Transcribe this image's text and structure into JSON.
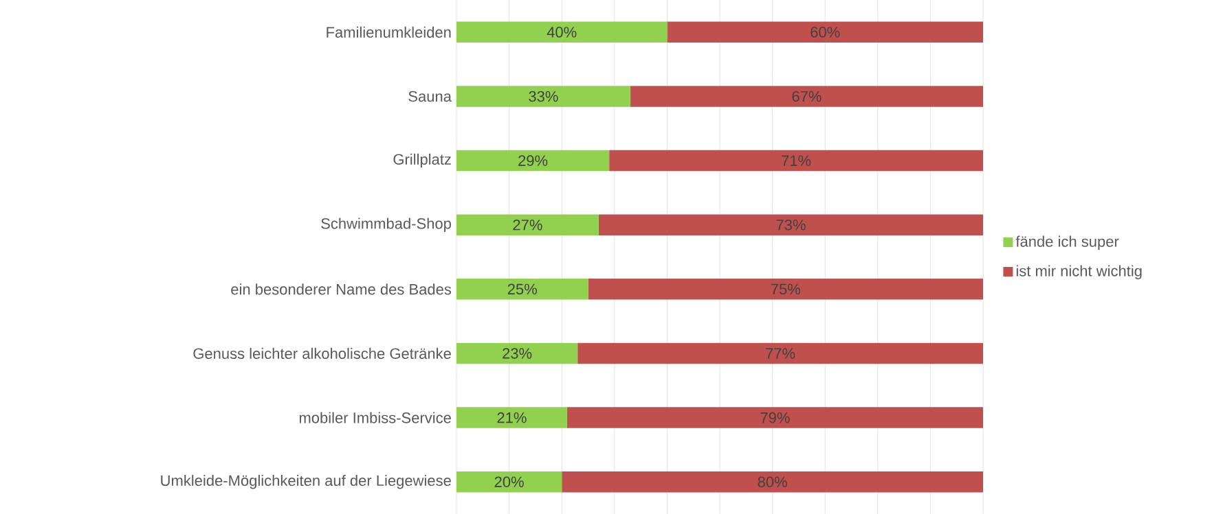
{
  "chart_data": {
    "type": "bar",
    "orientation": "horizontal",
    "stacked": true,
    "categories": [
      "Familienumkleiden",
      "Sauna",
      "Grillplatz",
      "Schwimmbad-Shop",
      "ein besonderer Name des Bades",
      "Genuss leichter alkoholische Getränke",
      "mobiler Imbiss-Service",
      "Umkleide-Möglichkeiten auf der Liegewiese"
    ],
    "series": [
      {
        "name": "fände ich super",
        "color": "#92d050",
        "values": [
          40,
          33,
          29,
          27,
          25,
          23,
          21,
          20
        ],
        "value_labels": [
          "40%",
          "33%",
          "29%",
          "27%",
          "25%",
          "23%",
          "21%",
          "20%"
        ]
      },
      {
        "name": "ist mir nicht wichtig",
        "color": "#c0504d",
        "values": [
          60,
          67,
          71,
          73,
          75,
          77,
          79,
          80
        ],
        "value_labels": [
          "60%",
          "67%",
          "71%",
          "73%",
          "75%",
          "77%",
          "79%",
          "80%"
        ]
      }
    ],
    "xlim": [
      0,
      100
    ],
    "xticks": [
      {
        "value": 0,
        "label": null
      },
      {
        "value": 10,
        "label": null
      },
      {
        "value": 20,
        "label": null
      },
      {
        "value": 30,
        "label": null
      },
      {
        "value": 40,
        "label": null
      },
      {
        "value": 50,
        "label": null
      },
      {
        "value": 60,
        "label": null
      },
      {
        "value": 70,
        "label": null
      },
      {
        "value": 80,
        "label": null
      },
      {
        "value": 90,
        "label": null
      },
      {
        "value": 100,
        "label": null
      }
    ],
    "tick_labels": "y",
    "grid": "x",
    "legend": "right"
  }
}
